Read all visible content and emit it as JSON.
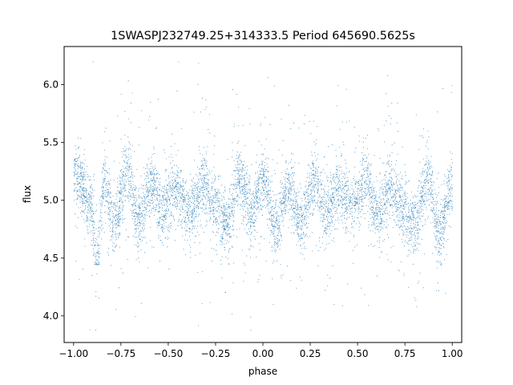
{
  "chart_data": {
    "type": "scatter",
    "title": "1SWASPJ232749.25+314333.5 Period 645690.5625s",
    "xlabel": "phase",
    "ylabel": "flux",
    "xlim": [
      -1.05,
      1.05
    ],
    "ylim": [
      3.77,
      6.33
    ],
    "x_ticks": [
      -1.0,
      -0.75,
      -0.5,
      -0.25,
      0.0,
      0.25,
      0.5,
      0.75,
      1.0
    ],
    "x_tick_labels": [
      "−1.00",
      "−0.75",
      "−0.50",
      "−0.25",
      "0.00",
      "0.25",
      "0.50",
      "0.75",
      "1.00"
    ],
    "y_ticks": [
      4.0,
      4.5,
      5.0,
      5.5,
      6.0
    ],
    "y_tick_labels": [
      "4.0",
      "4.5",
      "5.0",
      "5.5",
      "6.0"
    ],
    "grid": false,
    "series": [
      {
        "color": "#1f77b4",
        "marker": "point",
        "phase_range": [
          -1.0,
          1.0
        ],
        "flux_core_range": [
          4.6,
          5.4
        ],
        "flux_extreme_range": [
          3.88,
          6.2
        ],
        "baseline_flux": 5.0,
        "profile": [
          {
            "phase": -0.98,
            "flux": 5.2
          },
          {
            "phase": -0.91,
            "flux": 4.95
          },
          {
            "phase": -0.88,
            "flux": 4.5
          },
          {
            "phase": -0.84,
            "flux": 5.15
          },
          {
            "phase": -0.79,
            "flux": 4.8
          },
          {
            "phase": -0.72,
            "flux": 5.25
          },
          {
            "phase": -0.66,
            "flux": 4.85
          },
          {
            "phase": -0.59,
            "flux": 5.15
          },
          {
            "phase": -0.53,
            "flux": 4.9
          },
          {
            "phase": -0.46,
            "flux": 5.1
          },
          {
            "phase": -0.39,
            "flux": 4.9
          },
          {
            "phase": -0.32,
            "flux": 5.15
          },
          {
            "phase": -0.26,
            "flux": 4.95
          },
          {
            "phase": -0.19,
            "flux": 4.8
          },
          {
            "phase": -0.13,
            "flux": 5.2
          },
          {
            "phase": -0.06,
            "flux": 4.9
          },
          {
            "phase": 0.0,
            "flux": 5.15
          },
          {
            "phase": 0.07,
            "flux": 4.75
          },
          {
            "phase": 0.13,
            "flux": 5.1
          },
          {
            "phase": 0.2,
            "flux": 4.8
          },
          {
            "phase": 0.27,
            "flux": 5.2
          },
          {
            "phase": 0.33,
            "flux": 4.9
          },
          {
            "phase": 0.4,
            "flux": 5.1
          },
          {
            "phase": 0.47,
            "flux": 4.95
          },
          {
            "phase": 0.54,
            "flux": 5.15
          },
          {
            "phase": 0.6,
            "flux": 4.85
          },
          {
            "phase": 0.67,
            "flux": 5.1
          },
          {
            "phase": 0.74,
            "flux": 4.9
          },
          {
            "phase": 0.8,
            "flux": 4.8
          },
          {
            "phase": 0.87,
            "flux": 5.2
          },
          {
            "phase": 0.93,
            "flux": 4.75
          },
          {
            "phase": 1.0,
            "flux": 5.15
          }
        ]
      }
    ]
  }
}
